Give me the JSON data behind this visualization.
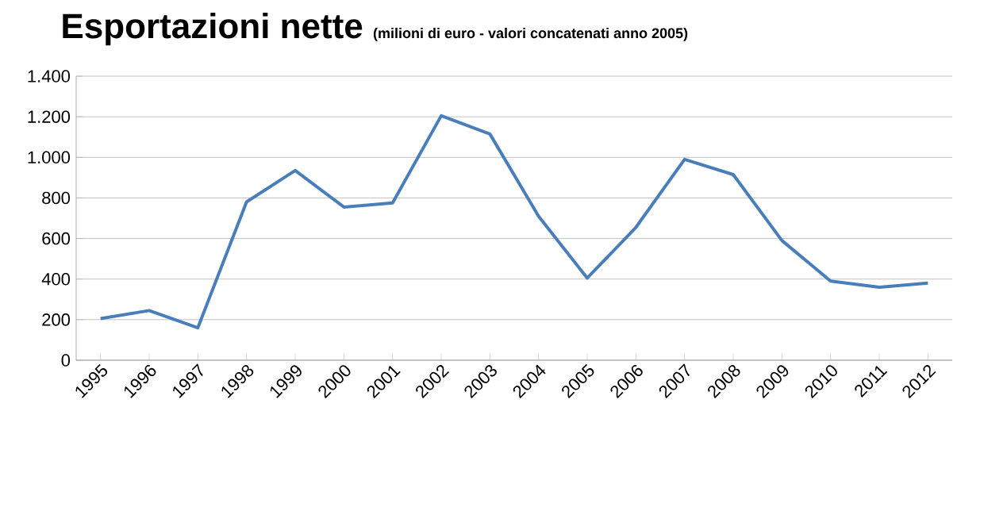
{
  "chart_data": {
    "type": "line",
    "title": "Esportazioni nette",
    "subtitle": "(milioni di euro - valori concatenati anno 2005)",
    "categories": [
      "1995",
      "1996",
      "1997",
      "1998",
      "1999",
      "2000",
      "2001",
      "2002",
      "2003",
      "2004",
      "2005",
      "2006",
      "2007",
      "2008",
      "2009",
      "2010",
      "2011",
      "2012"
    ],
    "series": [
      {
        "color": "#4a7ebb",
        "values": [
          205,
          245,
          160,
          780,
          935,
          755,
          775,
          1205,
          1115,
          710,
          405,
          655,
          990,
          915,
          590,
          390,
          360,
          380
        ]
      }
    ],
    "ylim": [
      0,
      1400
    ],
    "yticks": [
      0,
      200,
      400,
      600,
      800,
      {
        "value": 1000,
        "label": "1.000"
      },
      {
        "value": 1200,
        "label": "1.200"
      },
      {
        "value": 1400,
        "label": "1.400"
      }
    ],
    "grid": "y",
    "marker": "none",
    "line_style": "solid",
    "legend": false
  }
}
